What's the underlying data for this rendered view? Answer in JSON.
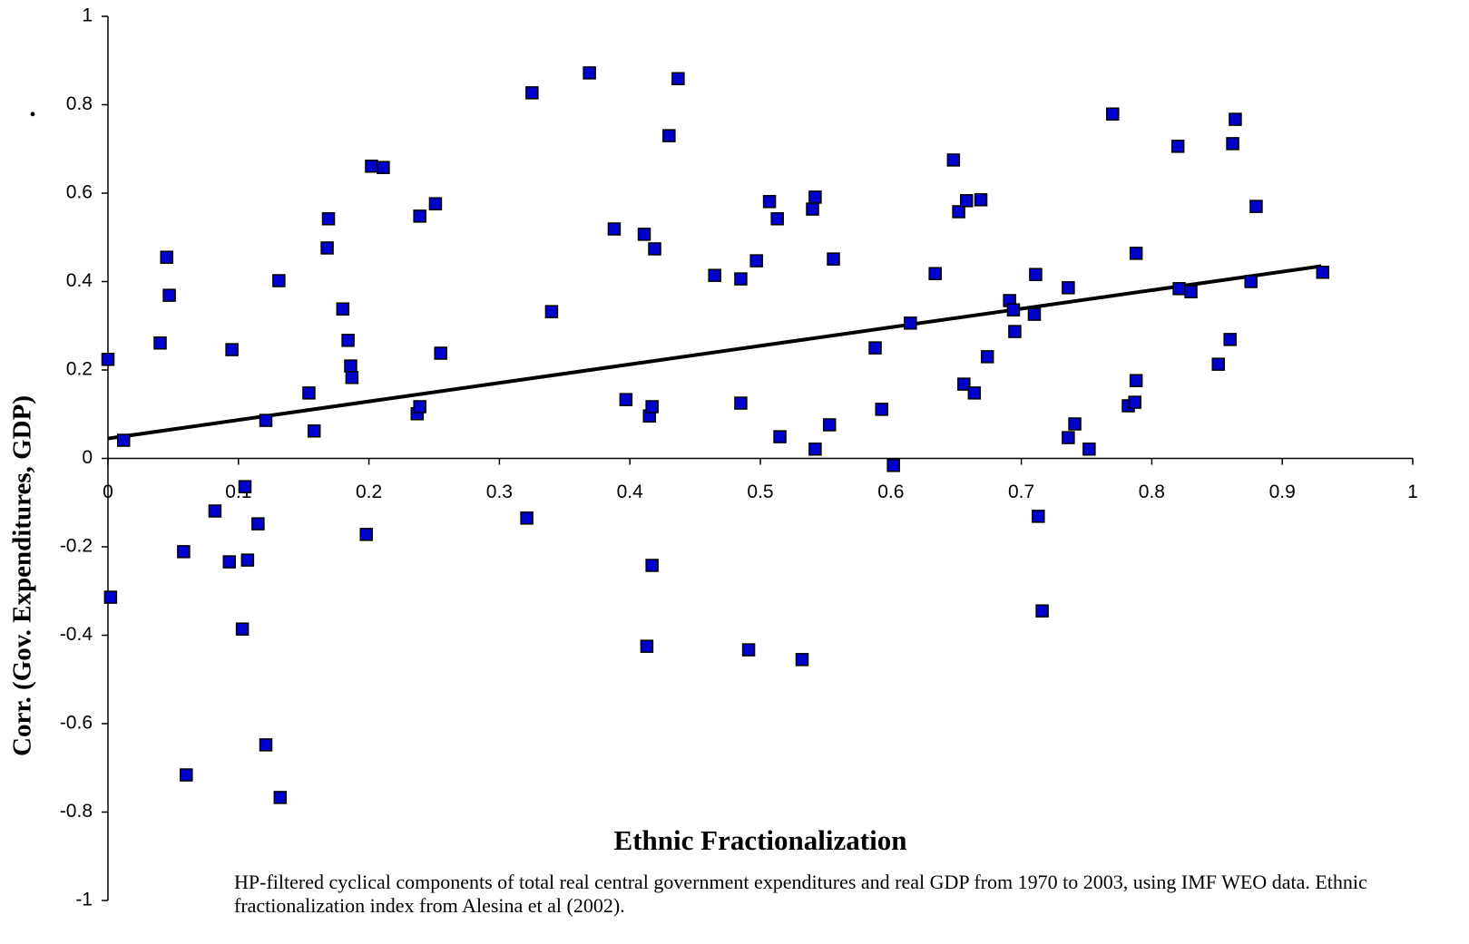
{
  "chart_data": {
    "type": "scatter",
    "x_label": "Ethnic Fractionalization",
    "y_label": "Corr. (Gov. Expenditures, GDP)",
    "annotation": ".",
    "note": "HP-filtered cyclical components of total real central government expenditures and real GDP from 1970 to 2003, using IMF WEO data. Ethnic fractionalization index from Alesina et al (2002).",
    "color": "#0000cc",
    "x": [
      0,
      0.012,
      0.002,
      0.04,
      0.045,
      0.047,
      0.058,
      0.06,
      0.082,
      0.093,
      0.095,
      0.105,
      0.107,
      0.103,
      0.115,
      0.121,
      0.121,
      0.131,
      0.132,
      0.154,
      0.158,
      0.169,
      0.168,
      0.18,
      0.184,
      0.186,
      0.187,
      0.198,
      0.202,
      0.211,
      0.237,
      0.239,
      0.239,
      0.251,
      0.255,
      0.321,
      0.325,
      0.34,
      0.369,
      0.388,
      0.397,
      0.411,
      0.413,
      0.415,
      0.417,
      0.417,
      0.419,
      0.43,
      0.437,
      0.465,
      0.485,
      0.485,
      0.491,
      0.497,
      0.507,
      0.513,
      0.515,
      0.532,
      0.54,
      0.542,
      0.542,
      0.553,
      0.556,
      0.588,
      0.593,
      0.602,
      0.615,
      0.634,
      0.648,
      0.652,
      0.656,
      0.658,
      0.664,
      0.669,
      0.674,
      0.691,
      0.694,
      0.695,
      0.71,
      0.711,
      0.713,
      0.716,
      0.736,
      0.736,
      0.741,
      0.752,
      0.77,
      0.782,
      0.787,
      0.788,
      0.788,
      0.82,
      0.821,
      0.83,
      0.851,
      0.86,
      0.862,
      0.864,
      0.876,
      0.88,
      0.931
    ],
    "values": [
      0.224,
      0.041,
      -0.314,
      0.261,
      0.455,
      0.369,
      -0.211,
      -0.716,
      -0.119,
      -0.234,
      0.246,
      -0.064,
      -0.23,
      -0.386,
      -0.148,
      0.086,
      -0.648,
      0.402,
      -0.767,
      0.148,
      0.062,
      0.542,
      0.476,
      0.338,
      0.267,
      0.209,
      0.183,
      -0.172,
      0.661,
      0.658,
      0.101,
      0.117,
      0.548,
      0.576,
      0.238,
      -0.135,
      0.827,
      0.332,
      0.872,
      0.519,
      0.133,
      0.507,
      -0.425,
      0.096,
      0.117,
      -0.242,
      0.474,
      0.73,
      0.859,
      0.414,
      0.125,
      0.406,
      -0.433,
      0.447,
      0.581,
      0.542,
      0.049,
      -0.455,
      0.564,
      0.591,
      0.021,
      0.076,
      0.451,
      0.25,
      0.111,
      -0.016,
      0.306,
      0.418,
      0.675,
      0.558,
      0.168,
      0.583,
      0.148,
      0.585,
      0.23,
      0.357,
      0.336,
      0.287,
      0.326,
      0.416,
      -0.131,
      -0.345,
      0.386,
      0.047,
      0.078,
      0.021,
      0.779,
      0.119,
      0.127,
      0.176,
      0.464,
      0.706,
      0.384,
      0.377,
      0.213,
      0.269,
      0.712,
      0.767,
      0.4,
      0.57,
      0.421
    ],
    "trendline": {
      "color": "#000000",
      "x": [
        0,
        0.93
      ],
      "values": [
        0.045,
        0.435
      ]
    },
    "xlim": [
      0,
      1
    ],
    "ylim": [
      -1,
      1
    ],
    "xticks": [
      0,
      0.1,
      0.2,
      0.3,
      0.4,
      0.5,
      0.6,
      0.7,
      0.8,
      0.9,
      1
    ],
    "yticks": [
      -1,
      -0.8,
      -0.6,
      -0.4,
      -0.2,
      0,
      0.2,
      0.4,
      0.6,
      0.8,
      1
    ],
    "grid": false
  }
}
